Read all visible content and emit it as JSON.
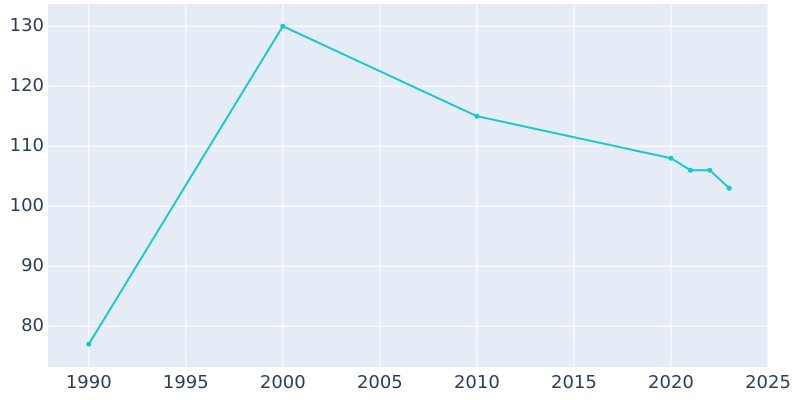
{
  "chart_data": {
    "type": "line",
    "x": [
      1990,
      2000,
      2010,
      2020,
      2021,
      2022,
      2023
    ],
    "series": [
      {
        "color": "#17c9cc",
        "values": [
          77,
          130,
          115,
          108,
          106,
          106,
          103
        ]
      }
    ],
    "xlim": [
      1987.9,
      2025
    ],
    "xticks": [
      1990,
      1995,
      2000,
      2005,
      2010,
      2015,
      2020,
      2025
    ],
    "ylim": [
      73.2,
      133.7
    ],
    "yticks": [
      80,
      90,
      100,
      110,
      120,
      130
    ],
    "grid": true
  }
}
